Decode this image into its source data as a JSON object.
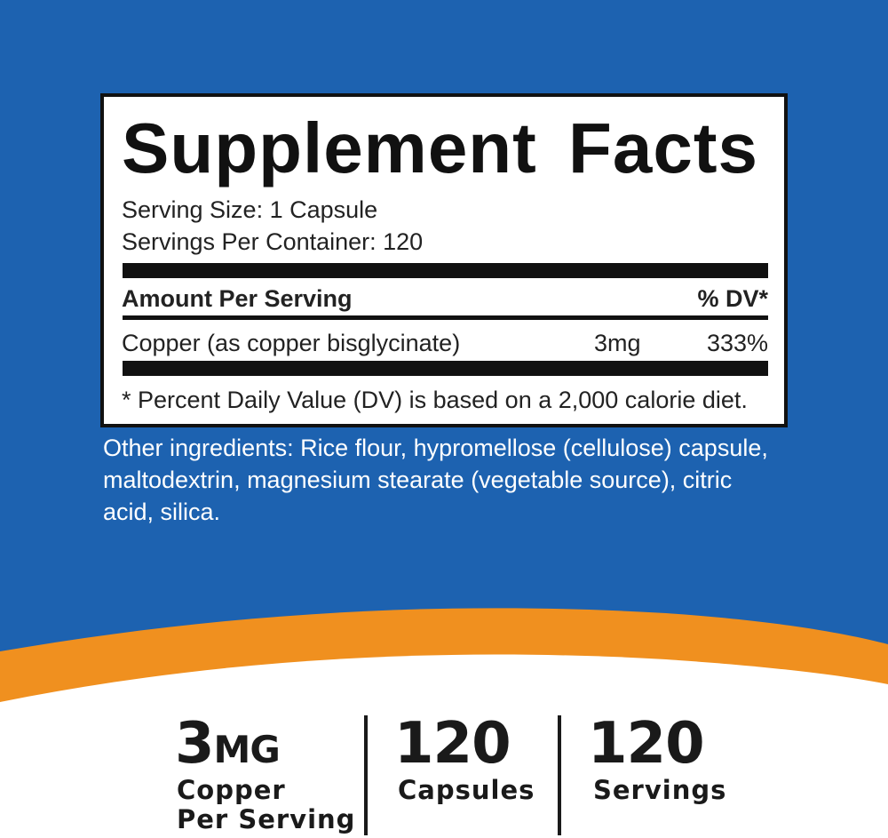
{
  "label": {
    "title": "Supplement Facts",
    "serving_size": "Serving Size: 1 Capsule",
    "servings_per_container": "Servings Per Container: 120",
    "header": {
      "amount": "Amount Per Serving",
      "dv": "% DV*"
    },
    "rows": [
      {
        "name": "Copper (as copper bisglycinate)",
        "amount": "3mg",
        "dv": "333%"
      }
    ],
    "footnote": "* Percent Daily Value (DV) is based on a 2,000 calorie diet."
  },
  "other_ingredients": [
    "Other ingredients: Rice flour, hypromellose (cellulose) capsule,",
    "maltodextrin, magnesium stearate (vegetable source), citric",
    "acid, silica."
  ],
  "stats": [
    {
      "value": "3",
      "unit": "MG",
      "lines": [
        "Copper",
        "Per Serving"
      ]
    },
    {
      "value": "120",
      "lines": [
        "Capsules"
      ]
    },
    {
      "value": "120",
      "lines": [
        "Servings"
      ]
    }
  ]
}
